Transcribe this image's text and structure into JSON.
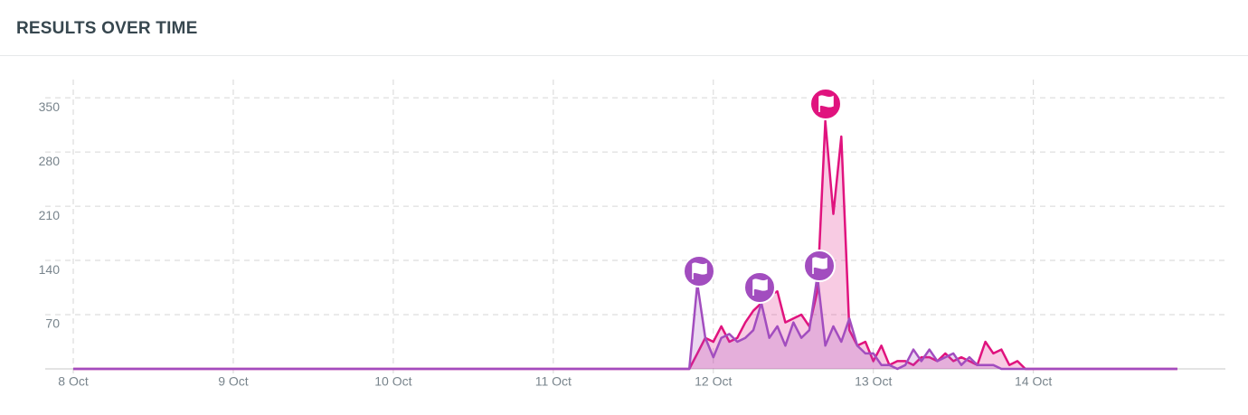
{
  "chart_data": {
    "type": "area",
    "title": "RESULTS OVER TIME",
    "x": [
      0,
      3.8,
      3.85,
      3.9,
      3.95,
      4.0,
      4.05,
      4.1,
      4.15,
      4.2,
      4.25,
      4.3,
      4.35,
      4.4,
      4.45,
      4.5,
      4.55,
      4.6,
      4.65,
      4.7,
      4.75,
      4.8,
      4.85,
      4.9,
      4.95,
      5.0,
      5.05,
      5.1,
      5.15,
      5.2,
      5.25,
      5.3,
      5.35,
      5.4,
      5.45,
      5.5,
      5.55,
      5.6,
      5.65,
      5.7,
      5.75,
      5.8,
      5.85,
      5.9,
      5.95,
      6.0,
      6.9
    ],
    "series": [
      {
        "color": "#e0137e",
        "values": [
          0,
          0,
          0,
          20,
          40,
          35,
          55,
          35,
          40,
          60,
          75,
          85,
          95,
          100,
          60,
          65,
          70,
          55,
          100,
          320,
          200,
          300,
          50,
          30,
          35,
          10,
          30,
          5,
          10,
          10,
          5,
          15,
          15,
          10,
          20,
          10,
          15,
          10,
          5,
          35,
          20,
          25,
          5,
          10,
          0,
          0,
          0
        ]
      },
      {
        "color": "#a24dbf",
        "values": [
          0,
          0,
          0,
          110,
          40,
          15,
          40,
          45,
          35,
          40,
          50,
          85,
          40,
          55,
          30,
          60,
          40,
          50,
          120,
          30,
          55,
          35,
          65,
          30,
          20,
          20,
          5,
          5,
          0,
          5,
          25,
          10,
          25,
          10,
          15,
          20,
          5,
          15,
          5,
          5,
          5,
          0,
          0,
          0,
          0,
          0,
          0
        ]
      }
    ],
    "xlim": [
      0,
      7.2
    ],
    "xticks": [
      {
        "value": 0,
        "label": "8 Oct"
      },
      {
        "value": 1,
        "label": "9 Oct"
      },
      {
        "value": 2,
        "label": "10 Oct"
      },
      {
        "value": 3,
        "label": "11 Oct"
      },
      {
        "value": 4,
        "label": "12 Oct"
      },
      {
        "value": 5,
        "label": "13 Oct"
      },
      {
        "value": 6,
        "label": "14 Oct"
      }
    ],
    "ylim": [
      0,
      370
    ],
    "yticks": [
      70,
      140,
      210,
      280,
      350
    ],
    "grid": true
  }
}
